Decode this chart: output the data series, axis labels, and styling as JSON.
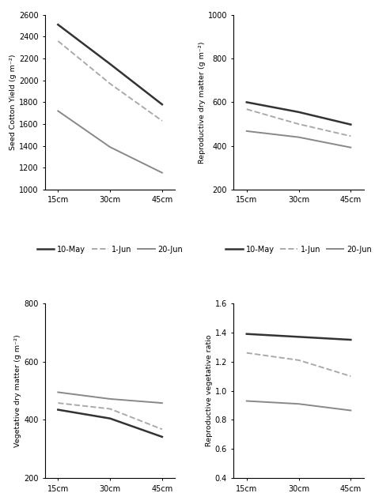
{
  "x_labels": [
    "15cm",
    "30cm",
    "45cm"
  ],
  "x_positions": [
    0,
    1,
    2
  ],
  "plot1": {
    "ylabel": "Seed Cotton Yield (g m⁻²)",
    "ylim": [
      1000,
      2600
    ],
    "yticks": [
      1000,
      1200,
      1400,
      1600,
      1800,
      2000,
      2200,
      2400,
      2600
    ],
    "series": {
      "10-May": [
        2510,
        2150,
        1780
      ],
      "1-Jun": [
        2360,
        1970,
        1630
      ],
      "20-Jun": [
        1720,
        1390,
        1155
      ]
    }
  },
  "plot2": {
    "ylabel": "Reproductive dry matter (g m⁻²)",
    "ylim": [
      200,
      1000
    ],
    "yticks": [
      200,
      400,
      600,
      800,
      1000
    ],
    "series": {
      "10-May": [
        600,
        555,
        498
      ],
      "1-Jun": [
        568,
        500,
        445
      ],
      "20-Jun": [
        468,
        440,
        393
      ]
    }
  },
  "plot3": {
    "ylabel": "Vegetative dry matter (g m⁻²)",
    "ylim": [
      200,
      800
    ],
    "yticks": [
      200,
      400,
      600,
      800
    ],
    "series": {
      "10-May": [
        435,
        405,
        342
      ],
      "1-Jun": [
        458,
        438,
        368
      ],
      "20-Jun": [
        495,
        472,
        458
      ]
    }
  },
  "plot4": {
    "ylabel": "Reproductive vegetative ratio",
    "ylim": [
      0.4,
      1.6
    ],
    "yticks": [
      0.4,
      0.6,
      0.8,
      1.0,
      1.2,
      1.4,
      1.6
    ],
    "series": {
      "10-May": [
        1.39,
        1.37,
        1.35
      ],
      "1-Jun": [
        1.26,
        1.21,
        1.1
      ],
      "20-Jun": [
        0.93,
        0.91,
        0.865
      ]
    }
  },
  "line_styles": {
    "10-May": {
      "color": "#333333",
      "linestyle": "-",
      "linewidth": 1.8
    },
    "1-Jun": {
      "color": "#aaaaaa",
      "linestyle": "--",
      "linewidth": 1.4
    },
    "20-Jun": {
      "color": "#888888",
      "linestyle": "-",
      "linewidth": 1.4
    }
  },
  "legend_labels": [
    "10-May",
    "1-Jun",
    "20-Jun"
  ],
  "background_color": "#ffffff",
  "tick_fontsize": 7,
  "ylabel_fontsize": 6.8,
  "legend_fontsize": 7.0
}
